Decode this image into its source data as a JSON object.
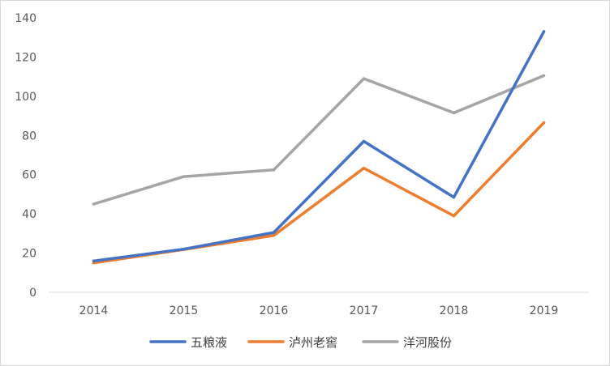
{
  "chart_data": {
    "type": "line",
    "title": "",
    "xlabel": "",
    "ylabel": "",
    "categories": [
      "2014",
      "2015",
      "2016",
      "2017",
      "2018",
      "2019"
    ],
    "ylim": [
      0,
      140
    ],
    "yticks": [
      0,
      20,
      40,
      60,
      80,
      100,
      120,
      140
    ],
    "grid": false,
    "legend_position": "bottom",
    "series": [
      {
        "name": "五粮液",
        "color": "#4472C4",
        "values": [
          16,
          22,
          30.5,
          77,
          48.5,
          133
        ]
      },
      {
        "name": "泸州老窖",
        "color": "#ED7D31",
        "values": [
          15,
          21.8,
          29,
          63.3,
          39,
          86.5
        ]
      },
      {
        "name": "洋河股份",
        "color": "#A5A5A5",
        "values": [
          45,
          59,
          62.5,
          109,
          91.5,
          110.5
        ]
      }
    ]
  }
}
